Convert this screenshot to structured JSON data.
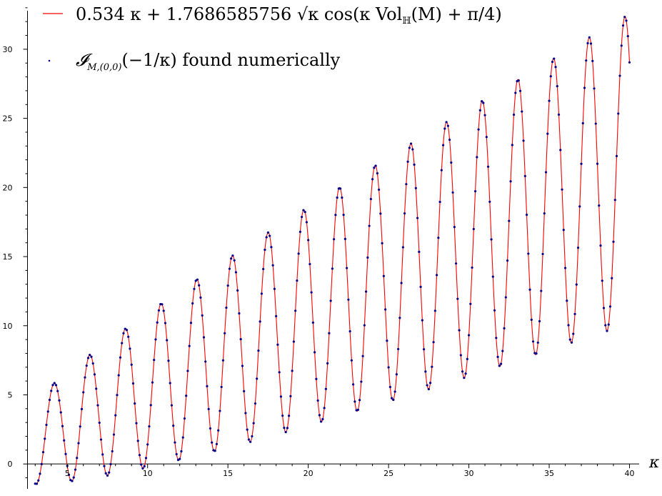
{
  "chart_data": {
    "type": "line",
    "title": "",
    "xlabel": "κ",
    "ylabel": "",
    "xlim": [
      2.5,
      40.6
    ],
    "ylim": [
      -1.8,
      33.2
    ],
    "x_ticks": [
      5,
      10,
      15,
      20,
      25,
      30,
      35,
      40
    ],
    "y_ticks": [
      0,
      5,
      10,
      15,
      20,
      25,
      30
    ],
    "grid": false,
    "legend_position": "top-left",
    "model": {
      "linear_coefficient": 0.534,
      "sqrt_coefficient": 1.7686585756,
      "frequency": 2.828122,
      "phase": 0.785398
    },
    "x_start": 3.0,
    "x_end": 40.0,
    "x_step": 0.1,
    "series": [
      {
        "name": "0.534 κ + 1.7686585756 √κ cos(κ Vol_ℍ(M) + π/4)",
        "kind": "curve",
        "color": "#ff0000"
      },
      {
        "name": "𝓘_{M,(0,0)}(−1/κ) found numerically",
        "kind": "points",
        "color": "#00008b"
      }
    ]
  },
  "legend": {
    "curve_label_main": "0.534 κ + 1.7686585756 √κ cos(κ Vol",
    "curve_label_sub": "ℍ",
    "curve_label_tail": "(M) + π/4)",
    "points_label_main": "𝓘",
    "points_label_sub": "M,(0,0)",
    "points_label_tail": "(−1/κ) found numerically"
  },
  "colors": {
    "curve": "#ff0000",
    "points": "#00008b",
    "axis": "#000000"
  }
}
